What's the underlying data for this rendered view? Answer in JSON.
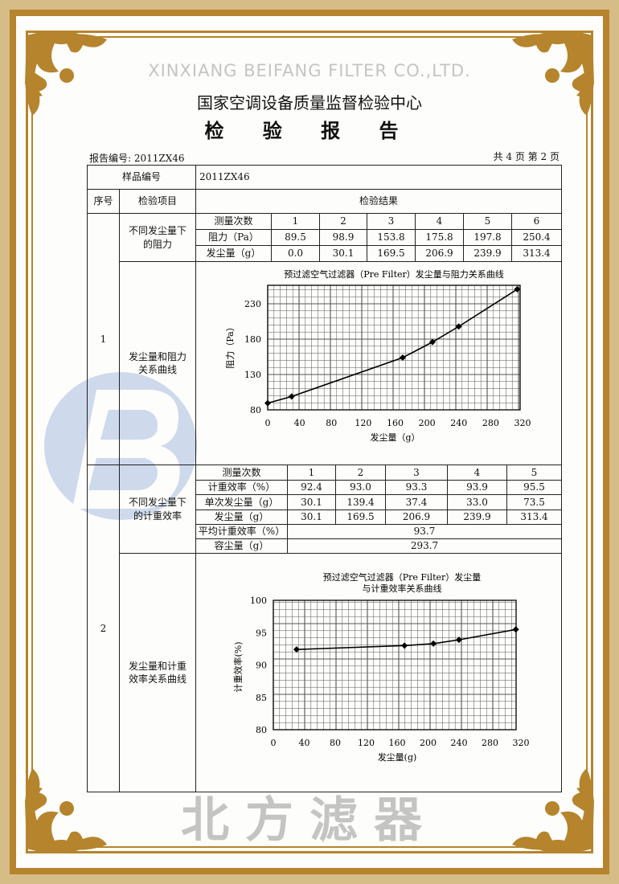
{
  "header": {
    "institution": "国家空调设备质量监督检验中心",
    "doc_title": "检 验 报 告",
    "report_no": "报告编号: 2011ZX46",
    "page_info": "共 4 页 第 2 页"
  },
  "watermark": {
    "brand": "北方滤器",
    "brand_en": "XINXIANG BEIFANG FILTER CO.,LTD.",
    "colors": {
      "logo": "#a9bde0",
      "text": "#969696"
    }
  },
  "colors": {
    "border_gold": "#b5842c",
    "border_outer": "#d6bc86"
  },
  "table": {
    "sample_no_label": "样品编号",
    "sample_no": "2011ZX46",
    "col_index": "序号",
    "col_item": "检验项目",
    "col_result": "检验结果",
    "sections": [
      {
        "index": "1",
        "sub1_label": "不同发尘量下的阻力",
        "sub2_label": "发尘量和阻力关系曲线",
        "rows": [
          {
            "label": "测量次数",
            "values": [
              "1",
              "2",
              "3",
              "4",
              "5",
              "6"
            ]
          },
          {
            "label": "阻力（Pa）",
            "values": [
              "89.5",
              "98.9",
              "153.8",
              "175.8",
              "197.8",
              "250.4"
            ]
          },
          {
            "label": "发尘量（g）",
            "values": [
              "0.0",
              "30.1",
              "169.5",
              "206.9",
              "239.9",
              "313.4"
            ]
          }
        ]
      },
      {
        "index": "2",
        "sub1_label": "不同发尘量下的计重效率",
        "sub2_label": "发尘量和计重效率关系曲线",
        "rows": [
          {
            "label": "测量次数",
            "values": [
              "1",
              "2",
              "3",
              "4",
              "5"
            ]
          },
          {
            "label": "计重效率（%）",
            "values": [
              "92.4",
              "93.0",
              "93.3",
              "93.9",
              "95.5"
            ]
          },
          {
            "label": "单次发尘量（g）",
            "values": [
              "30.1",
              "139.4",
              "37.4",
              "33.0",
              "73.5"
            ]
          },
          {
            "label": "发尘量（g）",
            "values": [
              "30.1",
              "169.5",
              "206.9",
              "239.9",
              "313.4"
            ]
          }
        ],
        "summary": [
          {
            "label": "平均计重效率（%）",
            "value": "93.7"
          },
          {
            "label": "容尘量（g）",
            "value": "293.7"
          }
        ]
      }
    ]
  },
  "chart_data": [
    {
      "type": "line",
      "title": "预过滤空气过滤器（Pre Filter）发尘量与阻力关系曲线",
      "xlabel": "发尘量（g）",
      "ylabel": "阻力（Pa）",
      "x": [
        0.0,
        30.1,
        169.5,
        206.9,
        239.9,
        313.4
      ],
      "y": [
        89.5,
        98.9,
        153.8,
        175.8,
        197.8,
        250.4
      ],
      "xlim": [
        0,
        320
      ],
      "ylim": [
        80,
        256
      ],
      "xticks": [
        "0",
        "40",
        "80",
        "120",
        "160",
        "200",
        "240",
        "280",
        "320"
      ],
      "yticks": [
        "80",
        "130",
        "180",
        "230"
      ],
      "grid": true,
      "marker": "diamond"
    },
    {
      "type": "line",
      "title": "预过滤空气过滤器（Pre Filter）发尘量",
      "title_line2": "与计重效率关系曲线",
      "xlabel": "发尘量(g)",
      "ylabel": "计重效率(%)",
      "x": [
        30.1,
        169.5,
        206.9,
        239.9,
        313.4
      ],
      "y": [
        92.4,
        93.0,
        93.3,
        93.9,
        95.5
      ],
      "xlim": [
        0,
        320
      ],
      "ylim": [
        80,
        100
      ],
      "xticks": [
        "0",
        "40",
        "80",
        "120",
        "160",
        "200",
        "240",
        "280",
        "320"
      ],
      "yticks": [
        "80",
        "85",
        "90",
        "95",
        "100"
      ],
      "grid": true,
      "marker": "diamond"
    }
  ]
}
